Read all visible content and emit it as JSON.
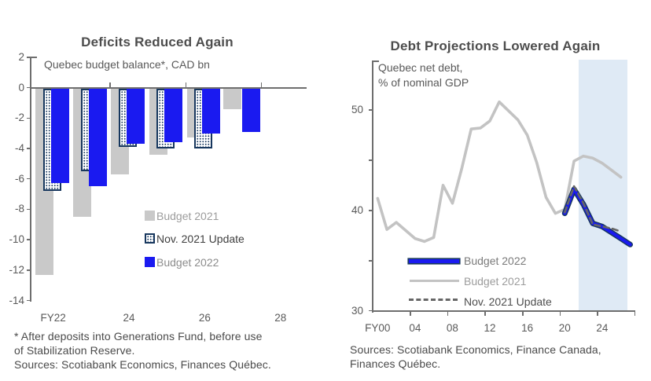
{
  "figure": {
    "background": "#ffffff",
    "colors": {
      "blue": "#1a1af0",
      "navy": "#17375e",
      "gray_bar": "#c9c9c9",
      "gray_line": "#c3c3c3",
      "dash_gray": "#666666",
      "axis": "#6e6e6e",
      "text": "#595959",
      "title": "#4d4d4d",
      "footnote": "#4a4a4a",
      "forecast_shade": "#dfeaf5"
    }
  },
  "chart_data": [
    {
      "id": "deficits-bar-chart",
      "type": "bar",
      "title": "Deficits Reduced Again",
      "subtitle": "Quebec budget balance*, CAD bn",
      "categories": [
        "FY22",
        "FY23",
        "FY24",
        "FY25",
        "FY26",
        "FY27"
      ],
      "x_tick_labels": [
        "FY22",
        "24",
        "26",
        "28"
      ],
      "y_ticks": [
        2,
        0,
        -2,
        -4,
        -6,
        -8,
        -10,
        -12,
        -14
      ],
      "ylim": [
        -14,
        2
      ],
      "grid": false,
      "series": [
        {
          "name": "Budget 2021",
          "style": "gray-bar",
          "values": [
            -12.3,
            -8.5,
            -5.7,
            -4.4,
            -3.3,
            -1.4
          ]
        },
        {
          "name": "Nov. 2021 Update",
          "style": "dotted-bar",
          "values": [
            -6.8,
            -5.5,
            -3.9,
            -4.0,
            -4.0,
            null
          ]
        },
        {
          "name": "Budget 2022",
          "style": "blue-bar",
          "values": [
            -6.3,
            -6.5,
            -3.7,
            -3.6,
            -3.0,
            -2.9
          ]
        }
      ],
      "legend": {
        "position": "center-right inside",
        "items": [
          {
            "label": "Budget 2021",
            "swatch": "gray",
            "label_color": "#9c9c9c"
          },
          {
            "label": "Nov. 2021 Update",
            "swatch": "dotted",
            "label_color": "#3f3f3f"
          },
          {
            "label": "Budget 2022",
            "swatch": "blue",
            "label_color": "#8c8c8c"
          }
        ]
      },
      "footnote_lines": [
        "* After deposits into Generations Fund, before use",
        "of Stabilization Reserve.",
        "Sources: Scotiabank Economics, Finances Québec."
      ]
    },
    {
      "id": "debt-line-chart",
      "type": "line",
      "title": "Debt Projections Lowered Again",
      "subtitle_lines": [
        "Quebec net debt,",
        "% of nominal GDP"
      ],
      "x_tick_labels": [
        "FY00",
        "04",
        "08",
        "12",
        "16",
        "20",
        "24"
      ],
      "y_ticks_labeled": [
        30,
        40,
        50
      ],
      "y_ticks_all": [
        30,
        35,
        40,
        45,
        50
      ],
      "ylim": [
        30,
        52
      ],
      "x_range_fiscal_years": [
        2000,
        2027
      ],
      "forecast_shading": {
        "from_fy": 2022,
        "to_fy": 2027
      },
      "grid": false,
      "series": [
        {
          "name": "Budget 2021",
          "style": "gray-line",
          "years": [
            2000,
            2001,
            2002,
            2003,
            2004,
            2005,
            2006,
            2007,
            2008,
            2009,
            2010,
            2011,
            2012,
            2013,
            2014,
            2015,
            2016,
            2017,
            2018,
            2019,
            2020,
            2021,
            2022,
            2023,
            2024,
            2025,
            2026
          ],
          "values": [
            41.2,
            38.1,
            38.8,
            38.0,
            37.2,
            36.9,
            37.3,
            42.5,
            40.7,
            44.2,
            48.1,
            48.2,
            48.9,
            50.8,
            49.9,
            49.0,
            47.5,
            44.8,
            41.3,
            39.7,
            40.1,
            44.9,
            45.4,
            45.2,
            44.7,
            44.0,
            43.3
          ]
        },
        {
          "name": "Nov. 2021 Update",
          "style": "dashed-line",
          "years": [
            2020,
            2021,
            2022,
            2023,
            2024,
            2025,
            2026
          ],
          "values": [
            39.8,
            42.4,
            40.7,
            38.6,
            38.4,
            38.2,
            37.9
          ]
        },
        {
          "name": "Budget 2022",
          "style": "blue-line",
          "years": [
            2020,
            2021,
            2022,
            2023,
            2024,
            2025,
            2026,
            2027
          ],
          "values": [
            39.7,
            42.1,
            40.6,
            38.7,
            38.4,
            37.8,
            37.2,
            36.6
          ]
        }
      ],
      "legend": {
        "position": "lower-left inside",
        "items": [
          {
            "label": "Budget 2022",
            "swatch": "blue-line",
            "label_color": "#7a7a7a"
          },
          {
            "label": "Budget 2021",
            "swatch": "gray-line",
            "label_color": "#9c9c9c"
          },
          {
            "label": "Nov. 2021 Update",
            "swatch": "dashed-line",
            "label_color": "#4d4d4d"
          }
        ]
      },
      "source_lines": [
        "Sources: Scotiabank Economics, Finance Canada,",
        "Finances Québec."
      ]
    }
  ]
}
